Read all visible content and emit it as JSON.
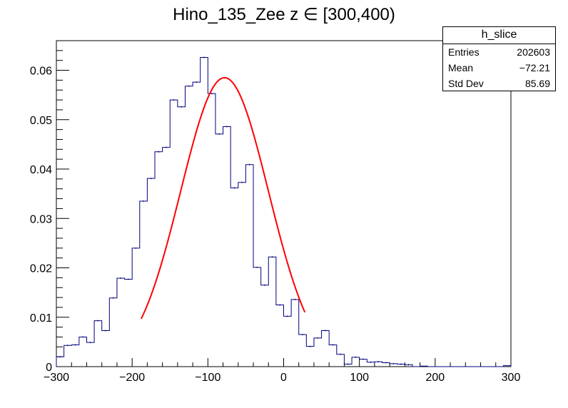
{
  "chart_data": {
    "type": "bar",
    "title": "Hino_135_Zee z  ∈ [300,400)",
    "xlim": [
      -300,
      300
    ],
    "ylim": [
      0,
      0.066
    ],
    "xticks": [
      -300,
      -200,
      -100,
      0,
      100,
      200,
      300
    ],
    "xtick_labels": [
      "−300",
      "−200",
      "−100",
      "0",
      "100",
      "200",
      "300"
    ],
    "yticks": [
      0,
      0.01,
      0.02,
      0.03,
      0.04,
      0.05,
      0.06
    ],
    "ytick_labels": [
      "0",
      "0.01",
      "0.02",
      "0.03",
      "0.04",
      "0.05",
      "0.06"
    ],
    "grid": false,
    "histogram": {
      "color": "#000080",
      "bin_width": 10,
      "bin_start": -300,
      "values": [
        0.002,
        0.0043,
        0.0044,
        0.006,
        0.0049,
        0.0093,
        0.0073,
        0.0139,
        0.0179,
        0.0177,
        0.024,
        0.0335,
        0.0381,
        0.0435,
        0.0444,
        0.054,
        0.0526,
        0.0568,
        0.0576,
        0.0626,
        0.0553,
        0.0471,
        0.0486,
        0.0362,
        0.0373,
        0.0409,
        0.0201,
        0.0165,
        0.0222,
        0.0125,
        0.0102,
        0.0136,
        0.0065,
        0.0041,
        0.0058,
        0.0073,
        0.0044,
        0.0025,
        0.0005,
        0.0019,
        0.0015,
        0.0009,
        0.001,
        0.0008,
        0.0006,
        0.0005,
        0.0004,
        0.0,
        0.0001,
        0.0,
        0.0,
        0.0,
        0.0,
        0.0,
        0.0,
        0.0,
        0.0,
        0.0,
        0.0,
        0.0002
      ]
    },
    "fit": {
      "color": "#ff0000",
      "type": "gaussian",
      "mean": -78,
      "sigma": 58,
      "amplitude": 0.0585,
      "range": [
        -188,
        28
      ]
    },
    "stats_box": {
      "name": "h_slice",
      "rows": [
        {
          "label": "Entries",
          "value": "202603"
        },
        {
          "label": "Mean",
          "value": "−72.21"
        },
        {
          "label": "Std Dev",
          "value": "85.69"
        }
      ]
    }
  }
}
